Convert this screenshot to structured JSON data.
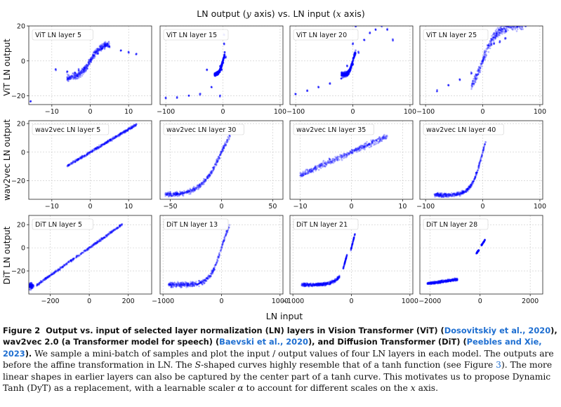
{
  "figure": {
    "suptitle": "LN output (y axis) vs. LN input (x axis)",
    "suptitle_parts": {
      "a": "LN output (",
      "b": "y",
      "c": " axis) vs. LN input (",
      "d": "x",
      "e": " axis)"
    },
    "xlabel": "LN input",
    "row_labels": [
      "ViT LN output",
      "wav2vec LN output",
      "DiT LN output"
    ]
  },
  "chart_data": [
    {
      "type": "scatter",
      "title": "ViT LN layer 5",
      "xlim": [
        -16,
        16
      ],
      "ylim": [
        -25,
        20
      ],
      "xticks": [
        -10,
        0,
        10
      ],
      "yticks": [
        -20,
        0,
        20
      ],
      "color": "#0000ff",
      "shape": {
        "kind": "tanh",
        "xmin": -6,
        "xmax": 5,
        "a": 10,
        "k": 0.35,
        "spread": 2.5
      },
      "points": [
        [
          -15.5,
          -23
        ],
        [
          2,
          4
        ],
        [
          3,
          7
        ],
        [
          4,
          9
        ],
        [
          5,
          8
        ],
        [
          8,
          6
        ],
        [
          10,
          5
        ],
        [
          12,
          4
        ],
        [
          -3,
          -5
        ],
        [
          -4,
          -7
        ],
        [
          -6,
          -6
        ],
        [
          -9,
          -5
        ]
      ]
    },
    {
      "type": "scatter",
      "title": "ViT LN layer 15",
      "xlim": [
        -110,
        105
      ],
      "ylim": [
        -25,
        20
      ],
      "xticks": [
        -100,
        0,
        100
      ],
      "yticks": [],
      "color": "#0000ff",
      "shape": {
        "kind": "tanh",
        "xmin": -15,
        "xmax": 3,
        "a": 8,
        "k": 0.15,
        "spread": 1.5
      },
      "points": [
        [
          -100,
          -21
        ],
        [
          -80,
          -21
        ],
        [
          -60,
          -20
        ],
        [
          -40,
          -19
        ],
        [
          -20,
          -15
        ],
        [
          -10,
          -8
        ],
        [
          -5,
          -3
        ],
        [
          0,
          -1
        ],
        [
          2,
          15
        ],
        [
          2,
          10
        ],
        [
          3,
          5
        ],
        [
          -5,
          -20
        ],
        [
          -2,
          -5
        ],
        [
          5,
          2
        ],
        [
          -28,
          -5
        ]
      ]
    },
    {
      "type": "scatter",
      "title": "ViT LN layer 20",
      "xlim": [
        -110,
        105
      ],
      "ylim": [
        -25,
        20
      ],
      "xticks": [
        -100,
        0,
        100
      ],
      "yticks": [],
      "color": "#0000ff",
      "shape": {
        "kind": "tanh",
        "xmin": -20,
        "xmax": 5,
        "a": 8,
        "k": 0.15,
        "spread": 2
      },
      "points": [
        [
          -100,
          -19
        ],
        [
          -80,
          -17
        ],
        [
          -60,
          -15
        ],
        [
          -40,
          -13
        ],
        [
          -20,
          -10
        ],
        [
          -10,
          -8
        ],
        [
          0,
          -2
        ],
        [
          10,
          5
        ],
        [
          20,
          12
        ],
        [
          30,
          16
        ],
        [
          40,
          18
        ],
        [
          50,
          20
        ],
        [
          60,
          18
        ],
        [
          70,
          12
        ],
        [
          0,
          10
        ],
        [
          5,
          20
        ],
        [
          -5,
          -5
        ],
        [
          -10,
          -3
        ]
      ]
    },
    {
      "type": "scatter",
      "title": "ViT LN layer 25",
      "xlim": [
        -110,
        105
      ],
      "ylim": [
        -25,
        20
      ],
      "xticks": [
        -100,
        0,
        100
      ],
      "yticks": [],
      "color": "#0000ff",
      "shape": {
        "kind": "tanh",
        "xmin": -20,
        "xmax": 70,
        "a": 21,
        "k": 0.04,
        "spread": 4
      },
      "points": [
        [
          -80,
          -17
        ],
        [
          -60,
          -14
        ],
        [
          -40,
          -11
        ],
        [
          -20,
          -7
        ],
        [
          0,
          0
        ],
        [
          20,
          10
        ],
        [
          40,
          17
        ],
        [
          60,
          20
        ],
        [
          70,
          21
        ],
        [
          75,
          20
        ],
        [
          40,
          13
        ],
        [
          30,
          11
        ]
      ]
    },
    {
      "type": "scatter",
      "title": "wav2vec LN layer 5",
      "xlim": [
        -16,
        16
      ],
      "ylim": [
        -33,
        22
      ],
      "xticks": [
        -10,
        0,
        10
      ],
      "yticks": [
        -20,
        0,
        20
      ],
      "color": "#0000ff",
      "shape": {
        "kind": "linear",
        "xmin": -6,
        "xmax": 12,
        "slope": 1.6,
        "spread": 1.3
      }
    },
    {
      "type": "scatter",
      "title": "wav2vec LN layer 30",
      "xlim": [
        -60,
        60
      ],
      "ylim": [
        -33,
        22
      ],
      "xticks": [
        -50,
        0,
        50
      ],
      "yticks": [],
      "color": "#0000ff",
      "shape": {
        "kind": "tanh",
        "xmin": -55,
        "xmax": 8,
        "a": 30,
        "k": 0.05,
        "spread": 2.5
      }
    },
    {
      "type": "scatter",
      "title": "wav2vec LN layer 35",
      "xlim": [
        -12,
        12
      ],
      "ylim": [
        -33,
        22
      ],
      "xticks": [
        -10,
        0,
        10
      ],
      "yticks": [],
      "color": "#0000ff",
      "shape": {
        "kind": "linear",
        "xmin": -10,
        "xmax": 7,
        "slope": 1.6,
        "spread": 3
      }
    },
    {
      "type": "scatter",
      "title": "wav2vec LN layer 40",
      "xlim": [
        -110,
        105
      ],
      "ylim": [
        -33,
        22
      ],
      "xticks": [
        -100,
        0,
        100
      ],
      "yticks": [],
      "color": "#0000ff",
      "shape": {
        "kind": "tanh",
        "xmin": -85,
        "xmax": 5,
        "a": 30,
        "k": 0.05,
        "spread": 2
      }
    },
    {
      "type": "scatter",
      "title": "DiT LN layer 5",
      "xlim": [
        -310,
        320
      ],
      "ylim": [
        -40,
        28
      ],
      "xticks": [
        -200,
        0,
        200
      ],
      "yticks": [
        -20,
        0,
        20
      ],
      "color": "#0000ff",
      "shape": {
        "kind": "linear",
        "xmin": -270,
        "xmax": 170,
        "slope": 0.12,
        "spread": 1.5
      },
      "clusters": [
        [
          -300,
          -33,
          20,
          4
        ]
      ]
    },
    {
      "type": "scatter",
      "title": "DiT LN layer 13",
      "xlim": [
        -1050,
        1050
      ],
      "ylim": [
        -40,
        28
      ],
      "xticks": [
        -1000,
        0,
        1000
      ],
      "yticks": [],
      "color": "#0000ff",
      "shape": {
        "kind": "tanh",
        "xmin": -900,
        "xmax": 130,
        "a": 32,
        "k": 0.005,
        "spread": 3
      }
    },
    {
      "type": "scatter",
      "title": "DiT LN layer 21",
      "xlim": [
        -1050,
        1050
      ],
      "ylim": [
        -40,
        28
      ],
      "xticks": [
        -1000,
        0,
        1000
      ],
      "yticks": [],
      "color": "#0000ff",
      "shape": {
        "kind": "tanh",
        "xmin": -850,
        "xmax": -200,
        "a": 32,
        "k": 0.005,
        "spread": 2
      },
      "segments": [
        [
          -140,
          -18,
          -70,
          -5
        ],
        [
          -10,
          -2,
          60,
          12
        ]
      ]
    },
    {
      "type": "scatter",
      "title": "DiT LN layer 28",
      "xlim": [
        -2400,
        2500
      ],
      "ylim": [
        -40,
        28
      ],
      "xticks": [
        -2000,
        0,
        2000
      ],
      "yticks": [],
      "color": "#0000ff",
      "shape": {
        "kind": "linear",
        "xmin": -2100,
        "xmax": -900,
        "slope": 0.003,
        "spread": 1.5,
        "offset": -31
      },
      "segments": [
        [
          -150,
          -5,
          -50,
          -2
        ],
        [
          50,
          2,
          200,
          7
        ]
      ]
    }
  ],
  "caption": {
    "label": "Figure 2",
    "bold_intro": "Output vs. input of selected layer normalization (LN) layers in Vision Transformer (ViT) (",
    "cite1": "Dosovitskiy et al., 2020",
    "bold_mid1": "), wav2vec 2.0 (a Transformer model for speech) (",
    "cite2": "Baevski et al., 2020",
    "bold_mid2": "), and Diffusion Transformer (DiT) (",
    "cite3": "Peebles and Xie, 2023",
    "bold_end": ").",
    "body_1": "We sample a mini-batch of samples and plot the input / output values of four LN layers in each model. The outputs are before the affine transformation in LN. The ",
    "s_symbol": "S",
    "body_2": "-shaped curves highly resemble that of a tanh function (see Figure ",
    "fig_ref": "3",
    "body_3": "). The more linear shapes in earlier layers can also be captured by the center part of a tanh curve. This motivates us to propose Dynamic Tanh (DyT) as a replacement, with a learnable scaler ",
    "alpha": "α",
    "body_4": " to account for different scales on the ",
    "x_symbol": "x",
    "body_5": " axis."
  }
}
